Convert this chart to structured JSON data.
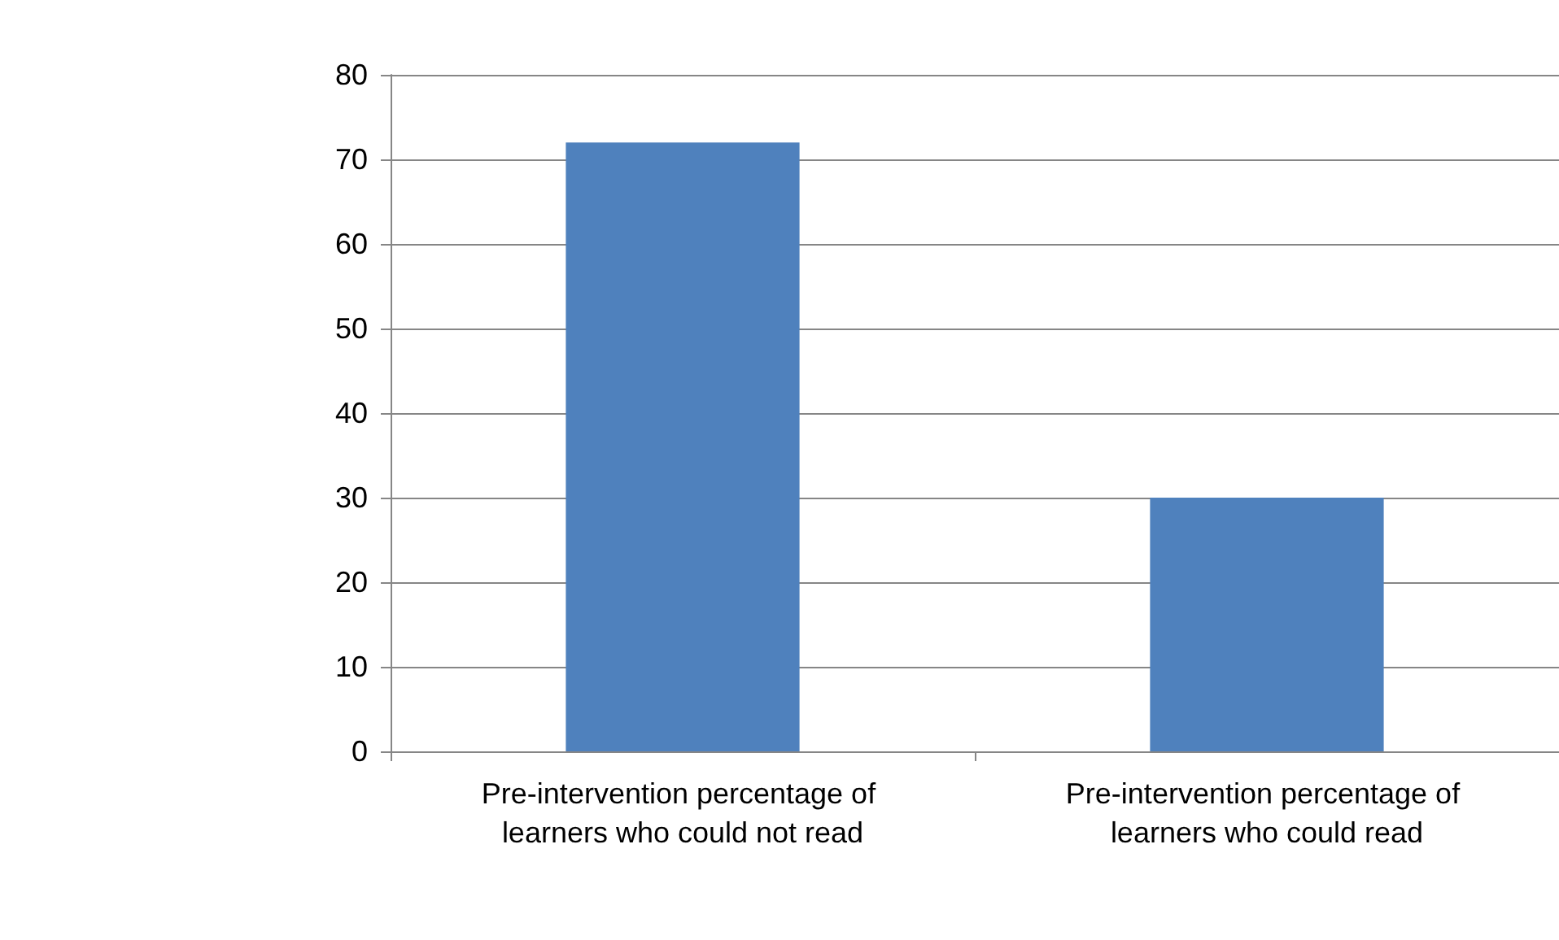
{
  "chart_data": {
    "type": "bar",
    "categories": [
      "Pre-intervention percentage of learners who could not read",
      "Pre-intervention percentage of learners who could read"
    ],
    "values": [
      72,
      30
    ],
    "color": "#4f81bd",
    "ylim": [
      0,
      80
    ],
    "yticks": [
      0,
      10,
      20,
      30,
      40,
      50,
      60,
      70,
      80
    ],
    "grid": "y"
  }
}
